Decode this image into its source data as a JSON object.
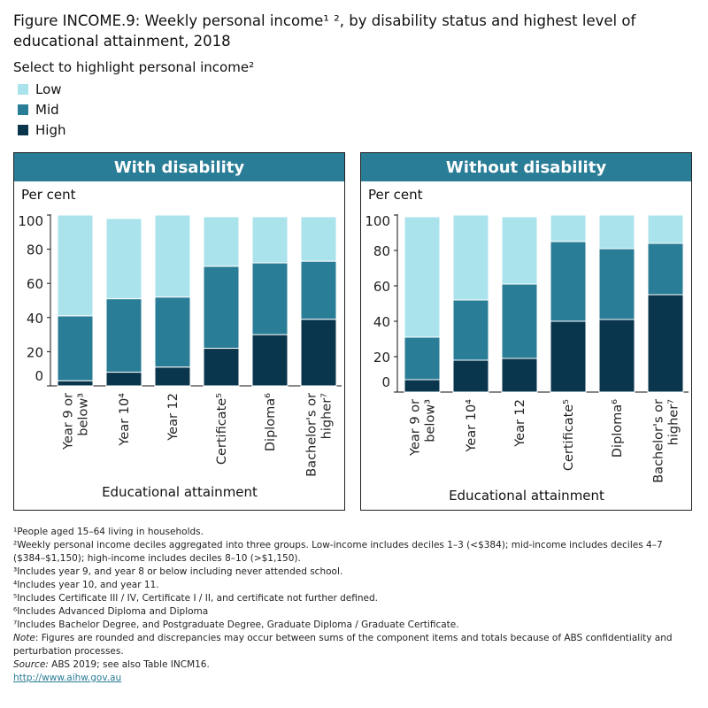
{
  "title": "Figure INCOME.9: Weekly personal income¹ ², by disability status and highest level of educational attainment, 2018",
  "legend": {
    "label": "Select to highlight personal income²",
    "items": [
      {
        "label": "Low",
        "color": "#abe3ec"
      },
      {
        "label": "Mid",
        "color": "#2a7d96"
      },
      {
        "label": "High",
        "color": "#0a364d"
      }
    ]
  },
  "chart_data": [
    {
      "type": "bar",
      "stacked": true,
      "title": "With disability",
      "ylabel": "Per cent",
      "xlabel": "Educational attainment",
      "ylim": [
        0,
        100
      ],
      "yticks": [
        "0",
        "20",
        "40",
        "60",
        "80",
        "100"
      ],
      "categories": [
        [
          "Year 9 or",
          "below³"
        ],
        [
          "Year 10⁴"
        ],
        [
          "Year 12"
        ],
        [
          "Certificate⁵"
        ],
        [
          "Diploma⁶"
        ],
        [
          "Bachelor's or",
          "higher⁷"
        ]
      ],
      "series": [
        {
          "name": "High",
          "values": [
            3,
            8,
            11,
            22,
            30,
            39
          ]
        },
        {
          "name": "Mid",
          "values": [
            38,
            43,
            41,
            48,
            42,
            34
          ]
        },
        {
          "name": "Low",
          "values": [
            59,
            47,
            48,
            29,
            27,
            26
          ]
        }
      ]
    },
    {
      "type": "bar",
      "stacked": true,
      "title": "Without disability",
      "ylabel": "Per cent",
      "xlabel": "Educational attainment",
      "ylim": [
        0,
        100
      ],
      "yticks": [
        "0",
        "20",
        "40",
        "60",
        "80",
        "100"
      ],
      "categories": [
        [
          "Year 9 or",
          "below³"
        ],
        [
          "Year 10⁴"
        ],
        [
          "Year 12"
        ],
        [
          "Certificate⁵"
        ],
        [
          "Diploma⁶"
        ],
        [
          "Bachelor's or",
          "higher⁷"
        ]
      ],
      "series": [
        {
          "name": "High",
          "values": [
            7,
            18,
            19,
            40,
            41,
            55
          ]
        },
        {
          "name": "Mid",
          "values": [
            24,
            34,
            42,
            45,
            40,
            29
          ]
        },
        {
          "name": "Low",
          "values": [
            68,
            48,
            38,
            15,
            19,
            16
          ]
        }
      ]
    }
  ],
  "notes": [
    "¹People aged 15–64 living in households.",
    "²Weekly personal income deciles aggregated into three groups. Low-income includes deciles 1–3 (<$384); mid-income includes deciles 4–7",
    "($384–$1,150); high-income includes deciles 8–10 (>$1,150).",
    "³Includes year 9, and year 8 or below including never attended school.",
    "⁴Includes year 10, and year 11.",
    "⁵Includes Certificate III / IV, Certificate I / II, and certificate not further defined.",
    "⁶Includes Advanced Diploma and Diploma",
    "⁷Includes Bachelor Degree, and Postgraduate Degree, Graduate Diploma / Graduate Certificate."
  ],
  "note": {
    "label": "Note",
    "text": ": Figures are rounded and discrepancies may occur between sums of the component items and totals because of ABS confidentiality and perturbation processes."
  },
  "source": {
    "label": "Source:",
    "text": " ABS 2019; see also Table INCM16."
  },
  "link": "http://www.aihw.gov.au"
}
